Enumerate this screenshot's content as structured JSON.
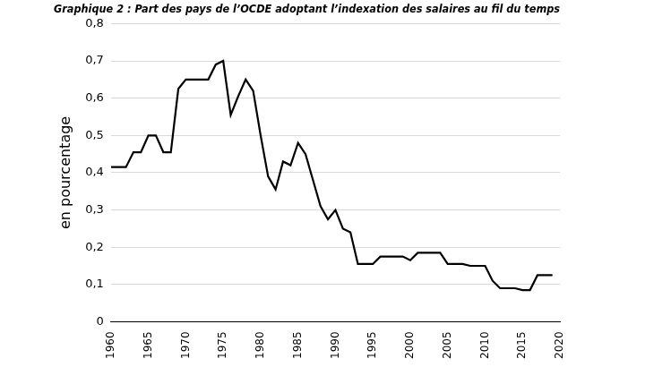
{
  "chart_data": {
    "type": "line",
    "title": "Graphique 2 : Part des pays de l’OCDE adoptant l’indexation des salaires au fil du temps",
    "y_label": "en pourcentage",
    "x": [
      1960,
      1961,
      1962,
      1963,
      1964,
      1965,
      1966,
      1967,
      1968,
      1969,
      1970,
      1971,
      1972,
      1973,
      1974,
      1975,
      1976,
      1977,
      1978,
      1979,
      1980,
      1981,
      1982,
      1983,
      1984,
      1985,
      1986,
      1987,
      1988,
      1989,
      1990,
      1991,
      1992,
      1993,
      1994,
      1995,
      1996,
      1997,
      1998,
      1999,
      2000,
      2001,
      2002,
      2003,
      2004,
      2005,
      2006,
      2007,
      2008,
      2009,
      2010,
      2011,
      2012,
      2013,
      2014,
      2015,
      2016,
      2017,
      2018,
      2019
    ],
    "values": [
      0.415,
      0.415,
      0.415,
      0.455,
      0.455,
      0.5,
      0.5,
      0.455,
      0.455,
      0.625,
      0.65,
      0.65,
      0.65,
      0.65,
      0.69,
      0.7,
      0.555,
      0.605,
      0.65,
      0.62,
      0.5,
      0.39,
      0.355,
      0.43,
      0.42,
      0.48,
      0.45,
      0.38,
      0.31,
      0.275,
      0.3,
      0.25,
      0.24,
      0.155,
      0.155,
      0.155,
      0.175,
      0.175,
      0.175,
      0.175,
      0.165,
      0.185,
      0.185,
      0.185,
      0.185,
      0.155,
      0.155,
      0.155,
      0.15,
      0.15,
      0.15,
      0.11,
      0.09,
      0.09,
      0.09,
      0.085,
      0.085,
      0.125,
      0.125,
      0.125
    ],
    "color": "#000000",
    "xlim": [
      1960,
      2020
    ],
    "xticks": [
      1960,
      1965,
      1970,
      1975,
      1980,
      1985,
      1990,
      1995,
      2000,
      2005,
      2010,
      2015,
      2020
    ],
    "ylim": [
      0,
      0.8
    ],
    "yticks": [
      0,
      {
        "value": 0.1,
        "label": "0,1"
      },
      {
        "value": 0.2,
        "label": "0,2"
      },
      {
        "value": 0.3,
        "label": "0,3"
      },
      {
        "value": 0.4,
        "label": "0,4"
      },
      {
        "value": 0.5,
        "label": "0,5"
      },
      {
        "value": 0.6,
        "label": "0,6"
      },
      {
        "value": 0.7,
        "label": "0,7"
      },
      {
        "value": 0.8,
        "label": "0,8"
      }
    ],
    "grid": true
  }
}
